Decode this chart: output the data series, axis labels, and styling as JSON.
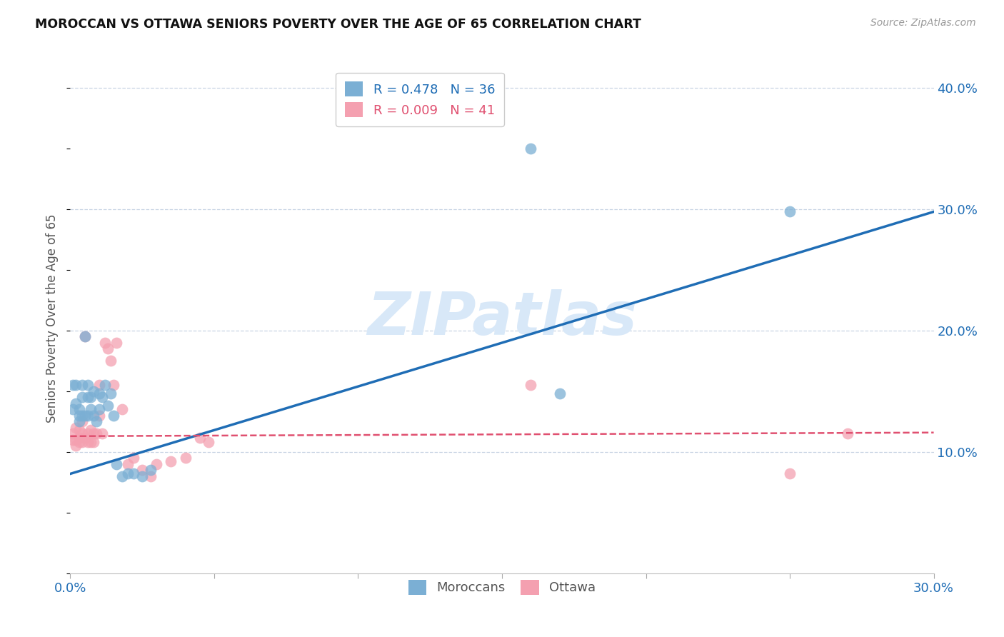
{
  "title": "MOROCCAN VS OTTAWA SENIORS POVERTY OVER THE AGE OF 65 CORRELATION CHART",
  "source": "Source: ZipAtlas.com",
  "ylabel": "Seniors Poverty Over the Age of 65",
  "xlim": [
    0.0,
    0.3
  ],
  "ylim": [
    0.0,
    0.42
  ],
  "x_ticks": [
    0.0,
    0.05,
    0.1,
    0.15,
    0.2,
    0.25,
    0.3
  ],
  "x_tick_labels": [
    "0.0%",
    "",
    "",
    "",
    "",
    "",
    "30.0%"
  ],
  "y_ticks_right": [
    0.1,
    0.2,
    0.3,
    0.4
  ],
  "y_tick_labels_right": [
    "10.0%",
    "20.0%",
    "30.0%",
    "40.0%"
  ],
  "moroccan_R": "0.478",
  "moroccan_N": "36",
  "ottawa_R": "0.009",
  "ottawa_N": "41",
  "moroccan_color": "#7bafd4",
  "ottawa_color": "#f4a0b0",
  "moroccan_line_color": "#1f6db5",
  "ottawa_line_color": "#e05070",
  "watermark": "ZIPatlas",
  "watermark_color": "#d8e8f8",
  "background_color": "#ffffff",
  "grid_color": "#c8d4e4",
  "moroccan_x": [
    0.001,
    0.001,
    0.002,
    0.002,
    0.003,
    0.003,
    0.003,
    0.004,
    0.004,
    0.004,
    0.005,
    0.005,
    0.006,
    0.006,
    0.006,
    0.007,
    0.007,
    0.008,
    0.008,
    0.009,
    0.01,
    0.01,
    0.011,
    0.012,
    0.013,
    0.014,
    0.015,
    0.016,
    0.018,
    0.02,
    0.022,
    0.025,
    0.028,
    0.16,
    0.17,
    0.25
  ],
  "moroccan_y": [
    0.135,
    0.155,
    0.14,
    0.155,
    0.135,
    0.13,
    0.125,
    0.13,
    0.155,
    0.145,
    0.195,
    0.13,
    0.13,
    0.145,
    0.155,
    0.135,
    0.145,
    0.13,
    0.15,
    0.125,
    0.135,
    0.148,
    0.145,
    0.155,
    0.138,
    0.148,
    0.13,
    0.09,
    0.08,
    0.082,
    0.082,
    0.08,
    0.085,
    0.35,
    0.148,
    0.298
  ],
  "ottawa_x": [
    0.001,
    0.001,
    0.002,
    0.002,
    0.002,
    0.003,
    0.003,
    0.003,
    0.004,
    0.004,
    0.004,
    0.005,
    0.005,
    0.006,
    0.006,
    0.007,
    0.007,
    0.008,
    0.008,
    0.009,
    0.01,
    0.01,
    0.011,
    0.012,
    0.013,
    0.014,
    0.015,
    0.016,
    0.018,
    0.02,
    0.022,
    0.025,
    0.028,
    0.03,
    0.035,
    0.04,
    0.045,
    0.048,
    0.16,
    0.25,
    0.27
  ],
  "ottawa_y": [
    0.115,
    0.11,
    0.12,
    0.11,
    0.105,
    0.118,
    0.112,
    0.108,
    0.125,
    0.108,
    0.115,
    0.195,
    0.112,
    0.108,
    0.115,
    0.118,
    0.108,
    0.115,
    0.108,
    0.115,
    0.155,
    0.13,
    0.115,
    0.19,
    0.185,
    0.175,
    0.155,
    0.19,
    0.135,
    0.09,
    0.095,
    0.085,
    0.08,
    0.09,
    0.092,
    0.095,
    0.112,
    0.108,
    0.155,
    0.082,
    0.115
  ],
  "moroccan_trend_x": [
    0.0,
    0.3
  ],
  "moroccan_trend_y": [
    0.082,
    0.298
  ],
  "ottawa_trend_x": [
    0.0,
    0.3
  ],
  "ottawa_trend_y": [
    0.113,
    0.116
  ]
}
